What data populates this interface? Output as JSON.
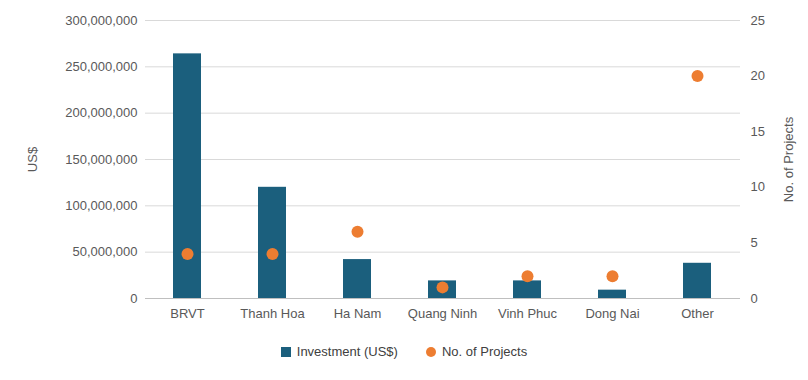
{
  "chart_data": {
    "type": "bar",
    "categories": [
      "BRVT",
      "Thanh Hoa",
      "Ha Nam",
      "Quang Ninh",
      "Vinh Phuc",
      "Dong Nai",
      "Other"
    ],
    "series": [
      {
        "name": "Investment (US$)",
        "type": "bar",
        "color": "#1b5f7d",
        "values": [
          264000000,
          120000000,
          42000000,
          19000000,
          19000000,
          9000000,
          38000000
        ]
      },
      {
        "name": "No. of Projects",
        "type": "scatter",
        "axis": "y2",
        "color": "#ed7d31",
        "marker": "circle",
        "values": [
          4,
          4,
          6,
          1,
          2,
          2,
          20
        ]
      }
    ],
    "y_label": "US$",
    "y2_label": "No. of Projects",
    "ylim": [
      0,
      300000000
    ],
    "yticks": [
      0,
      {
        "value": 50000000,
        "label": "50,000,000"
      },
      {
        "value": 100000000,
        "label": "100,000,000"
      },
      {
        "value": 150000000,
        "label": "150,000,000"
      },
      {
        "value": 200000000,
        "label": "200,000,000"
      },
      {
        "value": 250000000,
        "label": "250,000,000"
      },
      {
        "value": 300000000,
        "label": "300,000,000"
      }
    ],
    "y2lim": [
      0,
      25
    ],
    "y2ticks": [
      0,
      5,
      10,
      15,
      20,
      25
    ],
    "legend": "bottom"
  }
}
